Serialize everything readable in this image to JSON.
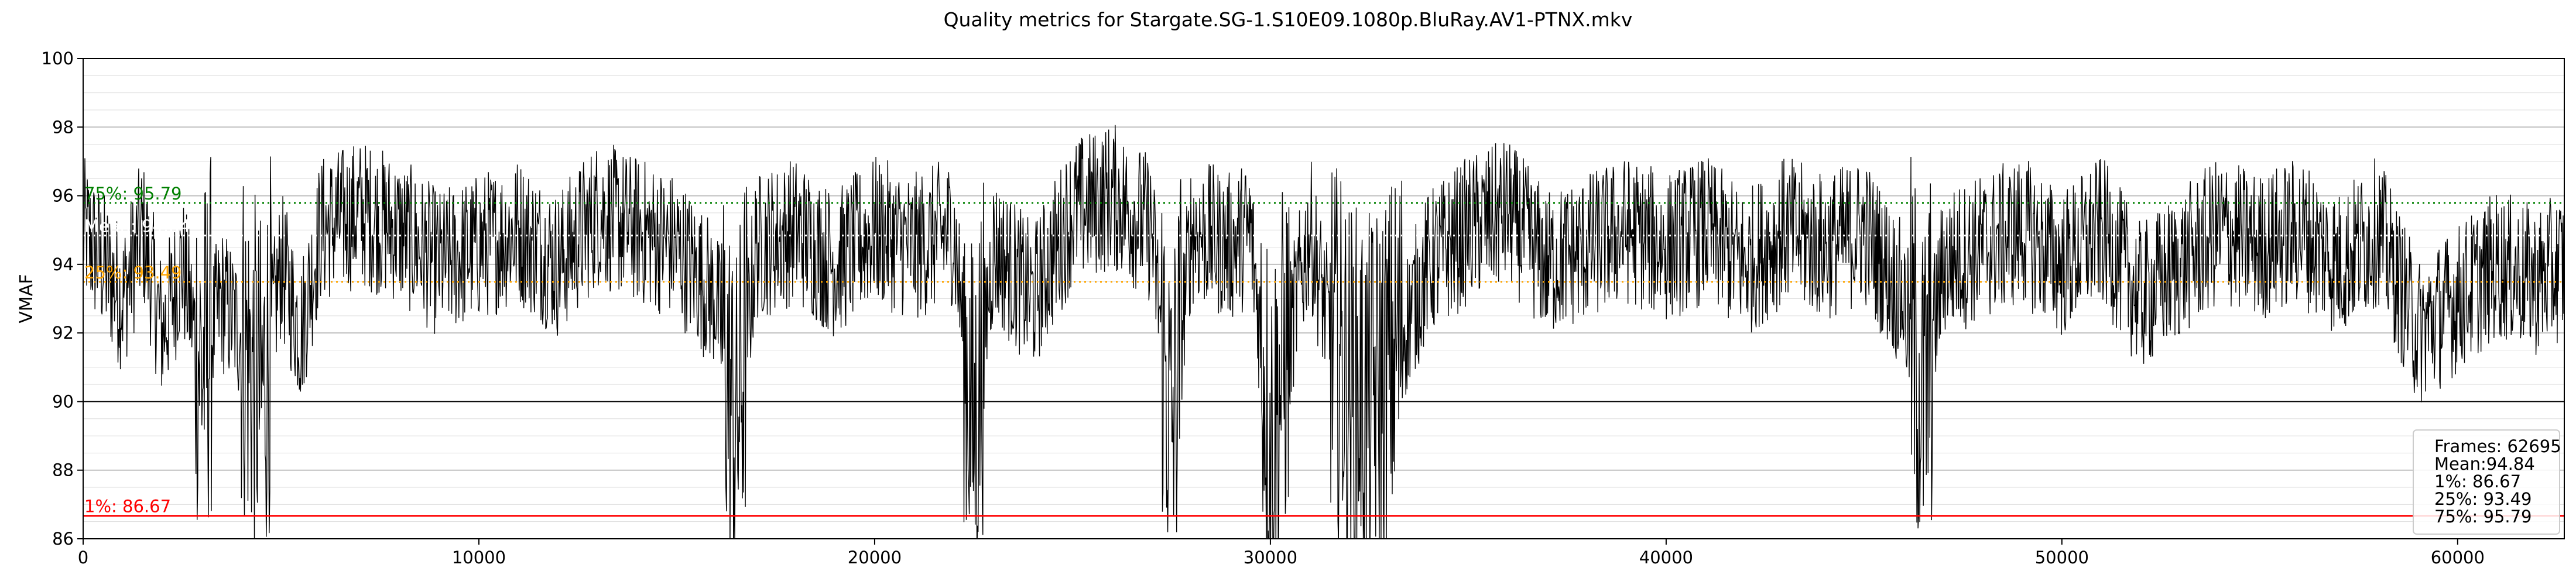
{
  "chart_data": {
    "type": "line",
    "title": "Quality metrics for Stargate.SG-1.S10E09.1080p.BluRay.AV1-PTNX.mkv",
    "xlabel": "",
    "ylabel": "VMAF",
    "xlim": [
      0,
      62695
    ],
    "ylim": [
      86,
      100
    ],
    "x_ticks": [
      0,
      10000,
      20000,
      30000,
      40000,
      50000,
      60000
    ],
    "y_ticks": [
      86,
      88,
      90,
      92,
      94,
      96,
      98,
      100
    ],
    "grid": true,
    "line_color": "#000000",
    "series": [
      {
        "frame_range": [
          0,
          62695
        ],
        "samples_x": [
          0,
          500,
          1000,
          1500,
          2000,
          2500,
          3000,
          3500,
          4000,
          4500,
          5000,
          5500,
          6000,
          7000,
          8000,
          9000,
          10000,
          11000,
          12000,
          13000,
          14000,
          15000,
          16000,
          16500,
          17000,
          18000,
          19000,
          20000,
          21000,
          22000,
          22500,
          23000,
          24000,
          25000,
          26000,
          27000,
          27500,
          28000,
          29000,
          29500,
          30000,
          31000,
          31500,
          32000,
          32500,
          33000,
          34000,
          35000,
          36000,
          37000,
          38000,
          39000,
          40000,
          41000,
          42000,
          43000,
          44000,
          45000,
          46000,
          46500,
          47000,
          48000,
          49000,
          50000,
          51000,
          52000,
          53000,
          54000,
          55000,
          56000,
          57000,
          58000,
          59000,
          60000,
          61000,
          62000,
          62695
        ],
        "samples_y": [
          95,
          94,
          93,
          95,
          92,
          94,
          91,
          93,
          92,
          90,
          94,
          92,
          95,
          95.5,
          95,
          94,
          94.5,
          95,
          94,
          95.5,
          95,
          94.5,
          93,
          89,
          94.5,
          95,
          94,
          95,
          94.5,
          95,
          89,
          94.5,
          93,
          95.5,
          96,
          95,
          89,
          95,
          94.5,
          95,
          89,
          95,
          92,
          90.5,
          90,
          91,
          94,
          95,
          95.5,
          94,
          94.5,
          95,
          94.5,
          95,
          94,
          95,
          94.5,
          95,
          93,
          90,
          94,
          94.5,
          95,
          94,
          95,
          93,
          94,
          95,
          94.5,
          95,
          94,
          95,
          92,
          93,
          94,
          93.5,
          94
        ]
      }
    ],
    "reference_lines": [
      {
        "label": "75%: 95.79",
        "value": 95.79,
        "color": "#008000",
        "style": "dotted"
      },
      {
        "label": "Mean: 94.84",
        "value": 94.84,
        "color": "#ffffff",
        "style": "dotted"
      },
      {
        "label": "25%: 93.49",
        "value": 93.49,
        "color": "#ffa500",
        "style": "dotted"
      },
      {
        "label": "1%: 86.67",
        "value": 86.67,
        "color": "#ff0000",
        "style": "solid"
      }
    ],
    "legend": {
      "position": "bottom-right",
      "lines": [
        "Frames: 62695",
        "Mean:94.84",
        "1%: 86.67",
        "25%: 93.49",
        "75%: 95.79"
      ]
    }
  }
}
